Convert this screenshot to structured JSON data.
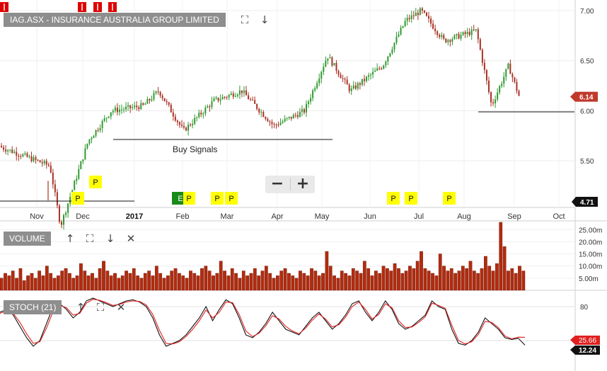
{
  "title": "IAG.ASX - INSURANCE AUSTRALIA GROUP LIMITED",
  "annotation": "Buy Signals",
  "zoom": {
    "minus": "−",
    "plus": "+"
  },
  "price_axis": {
    "ticks": [
      "7.00",
      "6.50",
      "6.00",
      "5.50"
    ],
    "last_price": "6.14",
    "low_marker": "4.71"
  },
  "time_axis": {
    "labels": [
      "Nov",
      "Dec",
      "2017",
      "Feb",
      "Mar",
      "Apr",
      "May",
      "Jun",
      "Jul",
      "Aug",
      "Sep",
      "Oct"
    ]
  },
  "volume_pane": {
    "label": "VOLUME",
    "ticks": [
      "25.00m",
      "20.00m",
      "15.00m",
      "10.00m",
      "5.00m"
    ]
  },
  "stoch_pane": {
    "label": "STOCH (21)",
    "ticks": [
      "80"
    ],
    "badge_k": "25.66",
    "badge_d": "12.24"
  },
  "signal_markers": {
    "p": "P",
    "earnings": "E",
    "dividend": "I"
  },
  "icons": {
    "expand": "expand-icon",
    "down": "down-arrow-icon",
    "up": "up-arrow-icon",
    "close": "close-icon"
  },
  "colors": {
    "bull": "#2e9a2e",
    "bear": "#a93226",
    "volume": "#b22b0e",
    "k_line": "#111111",
    "d_line": "#e02020",
    "price_badge": "#c0392b",
    "marker_p": "#ffff00",
    "marker_top": "#dd0000",
    "earnings": "#1a8a1a"
  },
  "chart_data": [
    {
      "type": "candlestick",
      "title": "IAG.ASX - INSURANCE AUSTRALIA GROUP LIMITED",
      "ylim": [
        4.6,
        7.05
      ],
      "last_price": 6.14,
      "level_lines": [
        6.0,
        5.73,
        4.71
      ],
      "annotations": [
        "Buy Signals"
      ],
      "series": [
        {
          "x": "2016-10",
          "close": 5.65
        },
        {
          "x": "2016-11-10",
          "close": 5.45
        },
        {
          "x": "2016-11-17",
          "close": 4.85
        },
        {
          "x": "2016-12-05",
          "close": 5.7
        },
        {
          "x": "2016-12-20",
          "close": 6.0
        },
        {
          "x": "2017-01-10",
          "close": 6.05
        },
        {
          "x": "2017-01-20",
          "close": 6.2
        },
        {
          "x": "2017-02-05",
          "close": 5.8
        },
        {
          "x": "2017-02-25",
          "close": 6.1
        },
        {
          "x": "2017-03-15",
          "close": 6.2
        },
        {
          "x": "2017-04-05",
          "close": 5.85
        },
        {
          "x": "2017-04-25",
          "close": 6.0
        },
        {
          "x": "2017-05-10",
          "close": 6.55
        },
        {
          "x": "2017-05-25",
          "close": 6.2
        },
        {
          "x": "2017-06-15",
          "close": 6.45
        },
        {
          "x": "2017-06-30",
          "close": 6.9
        },
        {
          "x": "2017-07-10",
          "close": 7.0
        },
        {
          "x": "2017-07-25",
          "close": 6.7
        },
        {
          "x": "2017-08-15",
          "close": 6.8
        },
        {
          "x": "2017-08-25",
          "close": 6.05
        },
        {
          "x": "2017-09-05",
          "close": 6.45
        },
        {
          "x": "2017-09-12",
          "close": 6.14
        }
      ]
    },
    {
      "type": "bar",
      "title": "VOLUME",
      "ylim": [
        0,
        28
      ],
      "unit": "m",
      "values": [
        5,
        7,
        6,
        8,
        5,
        9,
        4,
        6,
        7,
        5,
        8,
        6,
        10,
        7,
        5,
        6,
        8,
        9,
        7,
        5,
        6,
        11,
        8,
        6,
        7,
        5,
        9,
        12,
        8,
        6,
        7,
        5,
        6,
        8,
        7,
        9,
        6,
        5,
        7,
        8,
        6,
        10,
        7,
        5,
        6,
        8,
        9,
        7,
        6,
        5,
        8,
        7,
        6,
        9,
        10,
        8,
        6,
        7,
        12,
        8,
        6,
        9,
        7,
        5,
        8,
        6,
        7,
        9,
        6,
        8,
        10,
        7,
        5,
        6,
        8,
        9,
        7,
        6,
        5,
        8,
        7,
        6,
        9,
        8,
        6,
        7,
        16,
        10,
        6,
        5,
        8,
        7,
        6,
        9,
        8,
        7,
        12,
        9,
        6,
        8,
        7,
        10,
        9,
        8,
        11,
        9,
        7,
        8,
        10,
        9,
        12,
        16,
        9,
        8,
        7,
        6,
        15,
        10,
        8,
        9,
        7,
        8,
        10,
        9,
        12,
        8,
        7,
        9,
        14,
        10,
        8,
        11,
        28,
        18,
        8,
        9,
        7,
        10,
        8
      ]
    },
    {
      "type": "line",
      "title": "STOCH (21)",
      "ylim": [
        0,
        100
      ],
      "ticks": [
        80
      ],
      "series": [
        {
          "values": [
            70,
            75,
            65,
            45,
            25,
            10,
            20,
            50,
            80,
            85,
            75,
            60,
            70,
            90,
            95,
            90,
            85,
            80,
            85,
            90,
            92,
            88,
            80,
            60,
            30,
            10,
            15,
            20,
            30,
            45,
            60,
            80,
            55,
            75,
            92,
            85,
            60,
            30,
            25,
            35,
            50,
            70,
            55,
            40,
            35,
            30,
            45,
            60,
            70,
            55,
            40,
            50,
            65,
            85,
            90,
            70,
            55,
            70,
            90,
            75,
            50,
            40,
            45,
            55,
            65,
            90,
            80,
            75,
            40,
            15,
            12,
            20,
            35,
            60,
            50,
            40,
            25,
            22,
            24,
            12
          ]
        },
        {
          "values": [
            68,
            72,
            68,
            52,
            32,
            15,
            18,
            42,
            72,
            82,
            78,
            65,
            68,
            86,
            93,
            91,
            87,
            82,
            84,
            88,
            90,
            89,
            83,
            66,
            38,
            15,
            14,
            18,
            27,
            40,
            55,
            74,
            60,
            70,
            88,
            87,
            66,
            37,
            27,
            33,
            46,
            64,
            58,
            45,
            37,
            32,
            42,
            56,
            67,
            58,
            44,
            48,
            61,
            80,
            88,
            75,
            58,
            66,
            85,
            78,
            55,
            43,
            44,
            52,
            62,
            86,
            82,
            77,
            47,
            20,
            14,
            18,
            31,
            54,
            52,
            43,
            28,
            23,
            26,
            25.66
          ]
        }
      ]
    }
  ]
}
